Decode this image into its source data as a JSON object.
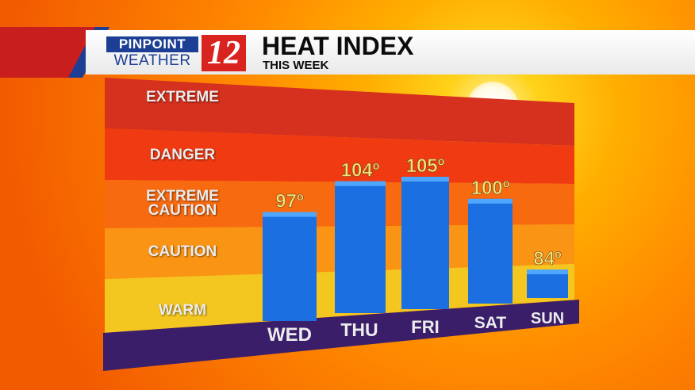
{
  "header": {
    "logo_top": "PINPOINT",
    "logo_bottom": "WEATHER",
    "logo_number": "12",
    "title": "HEAT INDEX",
    "subtitle": "THIS WEEK"
  },
  "zones": [
    {
      "label": "EXTREME",
      "color": "#d6301e"
    },
    {
      "label": "DANGER",
      "color": "#f03a12"
    },
    {
      "label": "EXTREME CAUTION",
      "color": "#f86a10"
    },
    {
      "label": "CAUTION",
      "color": "#fa9414"
    },
    {
      "label": "WARM",
      "color": "#f4c620"
    }
  ],
  "colors": {
    "bar": "#1c6fe0",
    "floor": "#3a1e6a",
    "value_label": "#f4e27a"
  },
  "chart_data": {
    "type": "bar",
    "title": "HEAT INDEX",
    "subtitle": "THIS WEEK",
    "categories": [
      "WED",
      "THU",
      "FRI",
      "SAT",
      "SUN"
    ],
    "values": [
      97,
      104,
      105,
      100,
      84
    ],
    "value_labels": [
      "97º",
      "104º",
      "105º",
      "100º",
      "84º"
    ],
    "xlabel": "",
    "ylabel": "",
    "grid": false,
    "legend": "none"
  }
}
